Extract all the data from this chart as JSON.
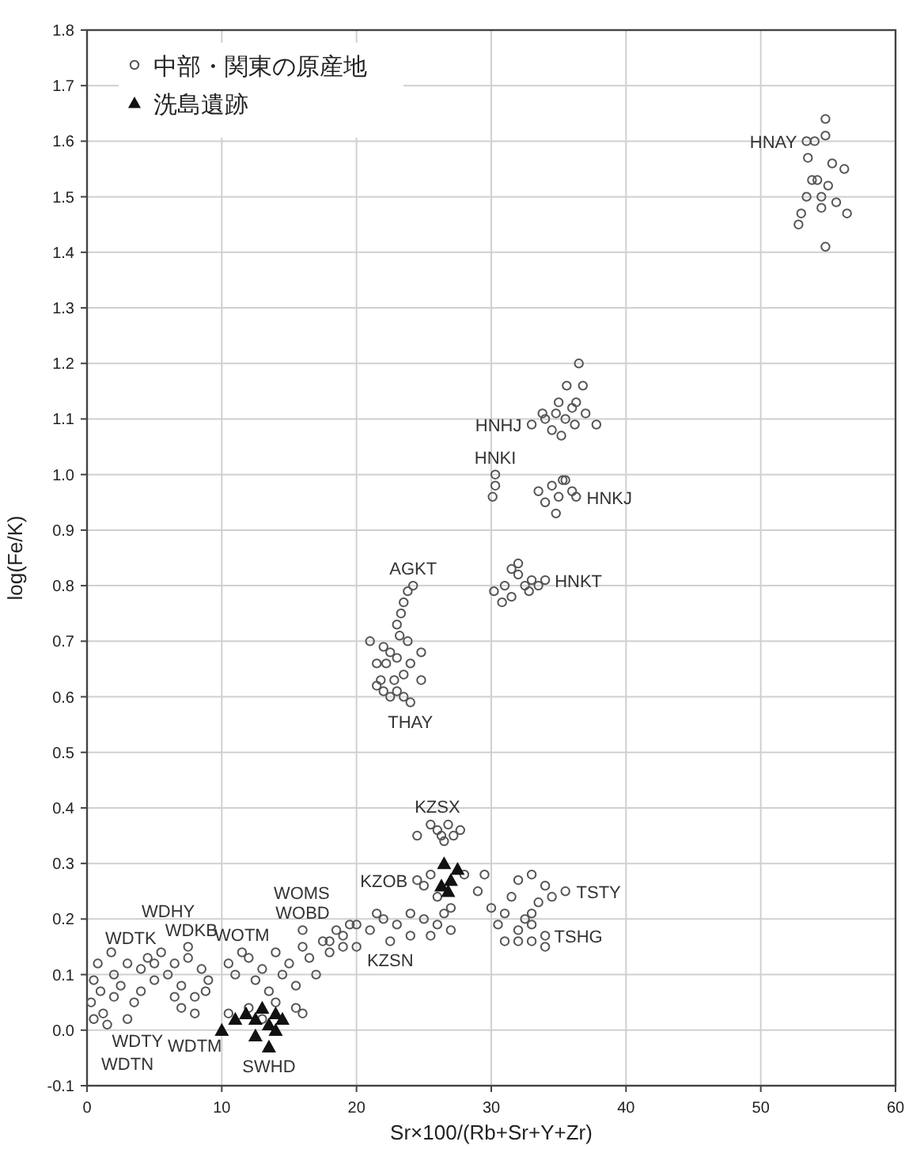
{
  "chart_data": {
    "type": "scatter",
    "xlabel": "Sr×100/(Rb+Sr+Y+Zr)",
    "ylabel": "log(Fe/K)",
    "xlim": [
      0,
      60
    ],
    "xticks": [
      0,
      10,
      20,
      30,
      40,
      50,
      60
    ],
    "ylim": [
      -0.1,
      1.8
    ],
    "yticks": [
      -0.1,
      {
        "value": 0,
        "label": "0.0"
      },
      0.1,
      0.2,
      0.3,
      0.4,
      0.5,
      0.6,
      0.7,
      0.8,
      0.9,
      {
        "value": 1,
        "label": "1.0"
      },
      1.1,
      1.2,
      1.3,
      1.4,
      1.5,
      1.6,
      1.7,
      1.8
    ],
    "grid": true,
    "legend": "top left",
    "series": [
      {
        "name": "中部・関東の原産地",
        "color": "#555555",
        "marker": "circle",
        "x": [
          54.8,
          53.4,
          54,
          54.8,
          53.5,
          55.3,
          56.2,
          54.2,
          53.8,
          55,
          53.4,
          54.5,
          55.6,
          56.4,
          53,
          52.8,
          54.5,
          54.8,
          36.5,
          35.6,
          36.8,
          35,
          36.3,
          33,
          34,
          34.8,
          35.5,
          36,
          37,
          34.5,
          35.2,
          36.2,
          37.8,
          33.8,
          30.3,
          30.3,
          30.1,
          33.5,
          34.5,
          35.3,
          35,
          36,
          34,
          34.8,
          36.3,
          35.5,
          30.2,
          31,
          31.5,
          32,
          32.5,
          33,
          34,
          31.5,
          32.8,
          30.8,
          33.5,
          32,
          24.2,
          23.8,
          23.5,
          23.3,
          23,
          23.2,
          23.8,
          21,
          22,
          22.5,
          23,
          21.5,
          22.2,
          24,
          24.8,
          23.5,
          21.5,
          22,
          22.5,
          23,
          23.5,
          21.8,
          24.8,
          22.8,
          24,
          24.5,
          25.5,
          26,
          26.3,
          26.8,
          27.2,
          26.5,
          27.7,
          24.5,
          25,
          26,
          27,
          25.5,
          28,
          29,
          30,
          31,
          30.5,
          32,
          33,
          34,
          34.5,
          35.5,
          33.5,
          32.5,
          31.5,
          29.5,
          33,
          32,
          33,
          34,
          31,
          32,
          33,
          34,
          18,
          19,
          20,
          21,
          22,
          23,
          24,
          25,
          26,
          27,
          25.5,
          24,
          22.5,
          20,
          26.5,
          21.5,
          10.5,
          11,
          12,
          12.5,
          13,
          14,
          14.5,
          15,
          16,
          16.5,
          17,
          17.5,
          18,
          18.5,
          19,
          13.5,
          15.5,
          19.5,
          11.5,
          16,
          10.5,
          12,
          14,
          15.5,
          13,
          16,
          0.3,
          0.5,
          0.8,
          1,
          1.2,
          1.5,
          1.8,
          2,
          2.5,
          3,
          3.5,
          4,
          4.5,
          5,
          5.5,
          6,
          6.5,
          7,
          7.5,
          8,
          8.5,
          9,
          7,
          8,
          6.5,
          2,
          0.5,
          3,
          4,
          5,
          7.5,
          8.8
        ],
        "values": [
          1.64,
          1.6,
          1.6,
          1.61,
          1.57,
          1.56,
          1.55,
          1.53,
          1.53,
          1.52,
          1.5,
          1.5,
          1.49,
          1.47,
          1.47,
          1.45,
          1.48,
          1.41,
          1.2,
          1.16,
          1.16,
          1.13,
          1.13,
          1.09,
          1.1,
          1.11,
          1.1,
          1.12,
          1.11,
          1.08,
          1.07,
          1.09,
          1.09,
          1.11,
          1,
          0.98,
          0.96,
          0.97,
          0.98,
          0.99,
          0.96,
          0.97,
          0.95,
          0.93,
          0.96,
          0.99,
          0.79,
          0.8,
          0.83,
          0.82,
          0.8,
          0.81,
          0.81,
          0.78,
          0.79,
          0.77,
          0.8,
          0.84,
          0.8,
          0.79,
          0.77,
          0.75,
          0.73,
          0.71,
          0.7,
          0.7,
          0.69,
          0.68,
          0.67,
          0.66,
          0.66,
          0.66,
          0.68,
          0.64,
          0.62,
          0.61,
          0.6,
          0.61,
          0.6,
          0.63,
          0.63,
          0.63,
          0.59,
          0.35,
          0.37,
          0.36,
          0.35,
          0.37,
          0.35,
          0.34,
          0.36,
          0.27,
          0.26,
          0.24,
          0.22,
          0.28,
          0.28,
          0.25,
          0.22,
          0.21,
          0.19,
          0.27,
          0.28,
          0.26,
          0.24,
          0.25,
          0.23,
          0.2,
          0.24,
          0.28,
          0.21,
          0.18,
          0.19,
          0.17,
          0.16,
          0.16,
          0.16,
          0.15,
          0.16,
          0.17,
          0.19,
          0.18,
          0.2,
          0.19,
          0.21,
          0.2,
          0.19,
          0.18,
          0.17,
          0.17,
          0.16,
          0.15,
          0.21,
          0.21,
          0.12,
          0.1,
          0.13,
          0.09,
          0.11,
          0.14,
          0.1,
          0.12,
          0.15,
          0.13,
          0.1,
          0.16,
          0.14,
          0.18,
          0.15,
          0.07,
          0.08,
          0.19,
          0.14,
          0.18,
          0.03,
          0.04,
          0.05,
          0.04,
          0.02,
          0.03,
          0.05,
          0.09,
          0.12,
          0.07,
          0.03,
          0.01,
          0.14,
          0.1,
          0.08,
          0.12,
          0.05,
          0.11,
          0.13,
          0.09,
          0.14,
          0.1,
          0.12,
          0.08,
          0.13,
          0.06,
          0.11,
          0.09,
          0.04,
          0.03,
          0.06,
          0.06,
          0.02,
          0.02,
          0.07,
          0.12,
          0.15,
          0.07
        ]
      },
      {
        "name": "洗島遺跡",
        "color": "#111111",
        "marker": "triangle",
        "x": [
          10,
          11,
          11.8,
          12.5,
          13,
          13.5,
          14,
          14.5,
          13.5,
          14,
          12.5,
          26.5,
          27,
          27.5,
          26.8,
          26.3
        ],
        "values": [
          0,
          0.02,
          0.03,
          0.02,
          0.04,
          0.01,
          0.03,
          0.02,
          -0.03,
          0,
          -0.01,
          0.3,
          0.27,
          0.29,
          0.25,
          0.26
        ]
      }
    ],
    "annotations": [
      {
        "text": "HNAY",
        "x": 53.4,
        "y": 1.6
      },
      {
        "text": "HNHJ",
        "x": 33,
        "y": 1.09
      },
      {
        "text": "HNKI",
        "x": 30.3,
        "y": 1
      },
      {
        "text": "HNKJ",
        "x": 36.3,
        "y": 0.96
      },
      {
        "text": "HNKT",
        "x": 34,
        "y": 0.81
      },
      {
        "text": "AGKT",
        "x": 24.2,
        "y": 0.8
      },
      {
        "text": "THAY",
        "x": 24,
        "y": 0.59
      },
      {
        "text": "KZSX",
        "x": 26,
        "y": 0.36
      },
      {
        "text": "KZOB",
        "x": 24.5,
        "y": 0.27
      },
      {
        "text": "TSTY",
        "x": 35.5,
        "y": 0.25
      },
      {
        "text": "TSHG",
        "x": 34,
        "y": 0.17
      },
      {
        "text": "KZSN",
        "x": 22.5,
        "y": 0.16
      },
      {
        "text": "WDTK",
        "x": 5.5,
        "y": 0.14
      },
      {
        "text": "WDKB",
        "x": 4.5,
        "y": 0.13
      },
      {
        "text": "WDHY",
        "x": 1.8,
        "y": 0.14
      },
      {
        "text": "WOBD",
        "x": 16,
        "y": 0.18
      },
      {
        "text": "WOMS",
        "x": 19.5,
        "y": 0.19
      },
      {
        "text": "WOTM",
        "x": 11.5,
        "y": 0.14
      },
      {
        "text": "WDTY",
        "x": 1.5,
        "y": 0.01
      },
      {
        "text": "WDTN",
        "x": 3,
        "y": 0.02
      },
      {
        "text": "WDTM",
        "x": 8,
        "y": 0.03
      },
      {
        "text": "SWHD",
        "x": 13.5,
        "y": -0.03
      }
    ]
  }
}
